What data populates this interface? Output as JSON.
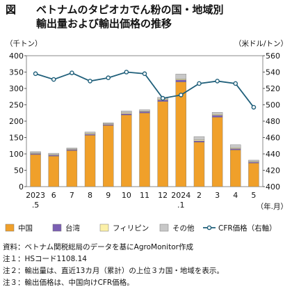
{
  "figure": {
    "label": "図",
    "title_line1": "ベトナムのタピオカでん粉の国・地域別",
    "title_line2": "輸出量および輸出価格の推移"
  },
  "chart_data": {
    "type": "bar",
    "stacked": true,
    "categories": [
      "2023\n.5",
      "6",
      "7",
      "8",
      "9",
      "10",
      "11",
      "12",
      "2024\n.1",
      "2",
      "3",
      "4",
      "5"
    ],
    "x_unit": "（年.月）",
    "y_left": {
      "unit": "（千トン）",
      "ylim": [
        0,
        400
      ],
      "ticks": [
        0,
        50,
        100,
        150,
        200,
        250,
        300,
        350,
        400
      ]
    },
    "y_right": {
      "unit": "（米ドル/トン）",
      "ylim": [
        400,
        560
      ],
      "ticks": [
        400,
        420,
        440,
        460,
        480,
        500,
        520,
        540,
        560
      ]
    },
    "series": [
      {
        "name": "中国",
        "color": "#f0a02a",
        "values": [
          98,
          93,
          110,
          157,
          187,
          219,
          225,
          260,
          320,
          136,
          212,
          112,
          72
        ]
      },
      {
        "name": "台湾",
        "color": "#7b5fb3",
        "values": [
          3,
          3,
          3,
          3,
          3,
          4,
          4,
          5,
          6,
          4,
          6,
          4,
          3
        ]
      },
      {
        "name": "フィリピン",
        "color": "#fbf0a8",
        "values": [
          2,
          2,
          2,
          3,
          2,
          3,
          2,
          3,
          3,
          3,
          3,
          3,
          2
        ]
      },
      {
        "name": "その他",
        "color": "#c8c8c8",
        "values": [
          4,
          4,
          3,
          4,
          3,
          5,
          4,
          5,
          15,
          10,
          6,
          9,
          4
        ]
      }
    ],
    "line": {
      "name": "CFR価格（右軸）",
      "axis": "right",
      "color": "#1f5f7a",
      "values": [
        538,
        531,
        539,
        529,
        533,
        540,
        538,
        508,
        512,
        526,
        529,
        526,
        497
      ]
    },
    "legend": "bottom",
    "grid": false
  },
  "notes": [
    "資料：ベトナム関税総局のデータを基にAgroMonitor作成",
    "注１：HSコード1108.14",
    "注２：輸出量は、直近13カ月（累計）の上位３カ国・地域を表示。",
    "注３：輸出価格は、中国向けCFR価格。"
  ]
}
